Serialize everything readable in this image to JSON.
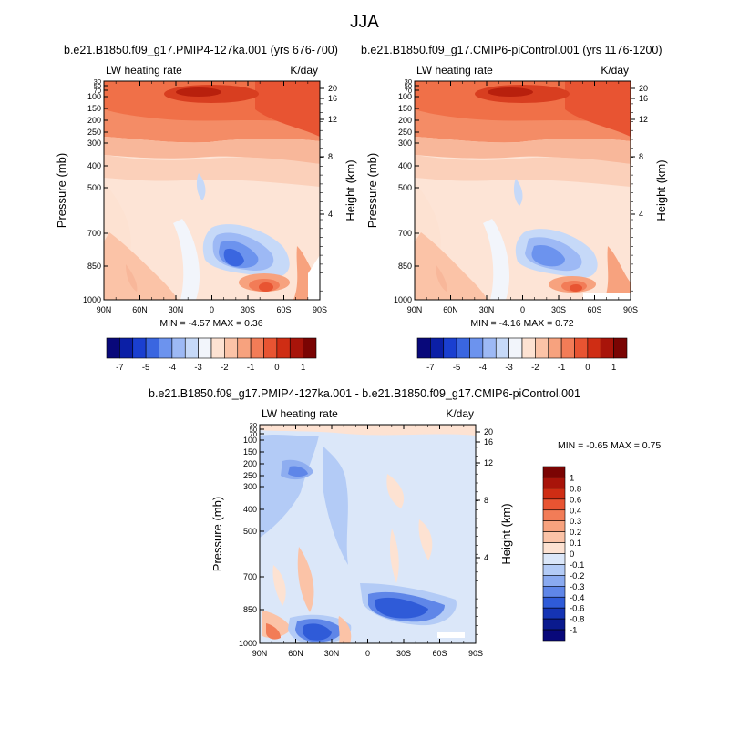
{
  "title": "JJA",
  "chart_data": [
    {
      "type": "heatmap",
      "subtitle": "b.e21.B1850.f09_g17.PMIP4-127ka.001 (yrs 676-700)",
      "left_label": "LW heating rate",
      "right_label": "K/day",
      "ylabel": "Pressure (mb)",
      "ylabel_right": "Height (km)",
      "x_ticks": [
        "90N",
        "60N",
        "30N",
        "0",
        "30S",
        "60S",
        "90S"
      ],
      "y_ticks": [
        "1000",
        "850",
        "700",
        "500",
        "400",
        "300",
        "250",
        "200",
        "150",
        "100",
        "70",
        "50",
        "30"
      ],
      "height_ticks": [
        "4",
        "8",
        "12",
        "16",
        "20"
      ],
      "stats": "MIN =  -4.57  MAX =   0.36"
    },
    {
      "type": "heatmap",
      "subtitle": "b.e21.B1850.f09_g17.CMIP6-piControl.001 (yrs 1176-1200)",
      "left_label": "LW heating rate",
      "right_label": "K/day",
      "ylabel": "Pressure (mb)",
      "ylabel_right": "Height (km)",
      "x_ticks": [
        "90N",
        "60N",
        "30N",
        "0",
        "30S",
        "60S",
        "90S"
      ],
      "y_ticks": [
        "1000",
        "850",
        "700",
        "500",
        "400",
        "300",
        "250",
        "200",
        "150",
        "100",
        "70",
        "50",
        "30"
      ],
      "height_ticks": [
        "4",
        "8",
        "12",
        "16",
        "20"
      ],
      "stats": "MIN =  -4.16  MAX =   0.72"
    },
    {
      "type": "heatmap",
      "subtitle": "b.e21.B1850.f09_g17.PMIP4-127ka.001 - b.e21.B1850.f09_g17.CMIP6-piControl.001",
      "left_label": "LW heating rate",
      "right_label": "K/day",
      "ylabel": "Pressure (mb)",
      "ylabel_right": "Height (km)",
      "x_ticks": [
        "90N",
        "60N",
        "30N",
        "0",
        "30S",
        "60S",
        "90S"
      ],
      "y_ticks": [
        "1000",
        "850",
        "700",
        "500",
        "400",
        "300",
        "250",
        "200",
        "150",
        "100",
        "70",
        "50",
        "30"
      ],
      "height_ticks": [
        "4",
        "8",
        "12",
        "16",
        "20"
      ],
      "stats": "MIN =  -0.65  MAX =   0.75"
    }
  ],
  "colorbar_top": {
    "labels": [
      "-7",
      "-5",
      "-4",
      "-3",
      "-2",
      "-1",
      "0",
      "1"
    ],
    "colors": [
      "#08087a",
      "#0b1fa6",
      "#1a3fd0",
      "#3a66e0",
      "#6c93ee",
      "#9db9f5",
      "#c6d9f8",
      "#f2f5fb",
      "#fde2d2",
      "#fbc3a7",
      "#f7a27e",
      "#f27c57",
      "#e85432",
      "#cf2d14",
      "#a8140a",
      "#7a0403"
    ]
  },
  "colorbar_diff": {
    "labels": [
      "1",
      "0.8",
      "0.6",
      "0.4",
      "0.3",
      "0.2",
      "0.1",
      "0",
      "-0.1",
      "-0.2",
      "-0.3",
      "-0.4",
      "-0.6",
      "-0.8",
      "-1"
    ],
    "colors": [
      "#7a0403",
      "#a8140a",
      "#cf2d14",
      "#e85432",
      "#f27c57",
      "#f7a27e",
      "#fbc3a7",
      "#fde2d2",
      "#dbe7f9",
      "#b3cbf6",
      "#8aaaf0",
      "#5f86e8",
      "#2f5bd8",
      "#1534b4",
      "#0a1a8e",
      "#08087a"
    ]
  }
}
